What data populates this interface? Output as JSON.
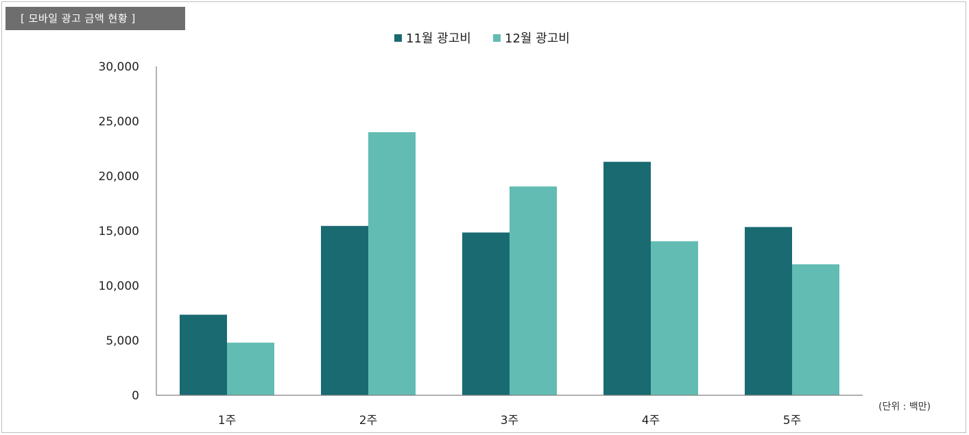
{
  "panel": {
    "title": "[ 모바일 광고 금액 현황 ]"
  },
  "colors": {
    "series_1": "#196a71",
    "series_2": "#62bcb3",
    "axis": "#7f7f7f",
    "title_bg": "#6e6e6e"
  },
  "chart_data": {
    "type": "bar",
    "title": "[ 모바일 광고 금액 현황 ]",
    "xlabel": "",
    "ylabel": "",
    "unit_note": "(단위 : 백만)",
    "categories": [
      "1주",
      "2주",
      "3주",
      "4주",
      "5주"
    ],
    "series": [
      {
        "name": "11월 광고비",
        "values": [
          7350,
          15450,
          14850,
          21300,
          15350
        ]
      },
      {
        "name": "12월 광고비",
        "values": [
          4800,
          24000,
          19050,
          14050,
          11950
        ]
      }
    ],
    "ylim": [
      0,
      30000
    ],
    "yticks": [
      0,
      5000,
      10000,
      15000,
      20000,
      25000,
      30000
    ],
    "ytick_labels": [
      "0",
      "5,000",
      "10,000",
      "15,000",
      "20,000",
      "25,000",
      "30,000"
    ],
    "grid": false,
    "legend_position": "top-center"
  }
}
